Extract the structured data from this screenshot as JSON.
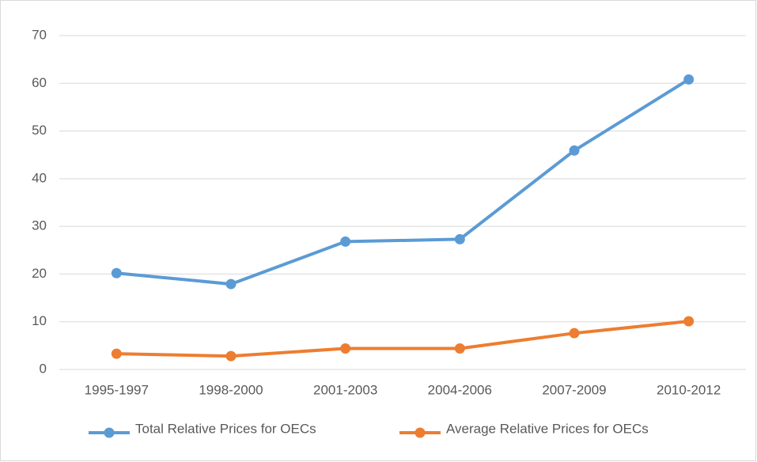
{
  "chart_data": {
    "type": "line",
    "categories": [
      "1995-1997",
      "1998-2000",
      "2001-2003",
      "2004-2006",
      "2007-2009",
      "2010-2012"
    ],
    "series": [
      {
        "name": "Total Relative Prices for OECs",
        "color": "#5b9bd5",
        "values": [
          20.2,
          17.9,
          26.8,
          27.3,
          45.9,
          60.8
        ]
      },
      {
        "name": "Average Relative Prices for OECs",
        "color": "#ed7d31",
        "values": [
          3.3,
          2.8,
          4.4,
          4.4,
          7.6,
          10.1
        ]
      }
    ],
    "ylim": [
      0,
      70
    ],
    "yticks": [
      0,
      10,
      20,
      30,
      40,
      50,
      60,
      70
    ],
    "grid": true,
    "legend": "bottom"
  }
}
